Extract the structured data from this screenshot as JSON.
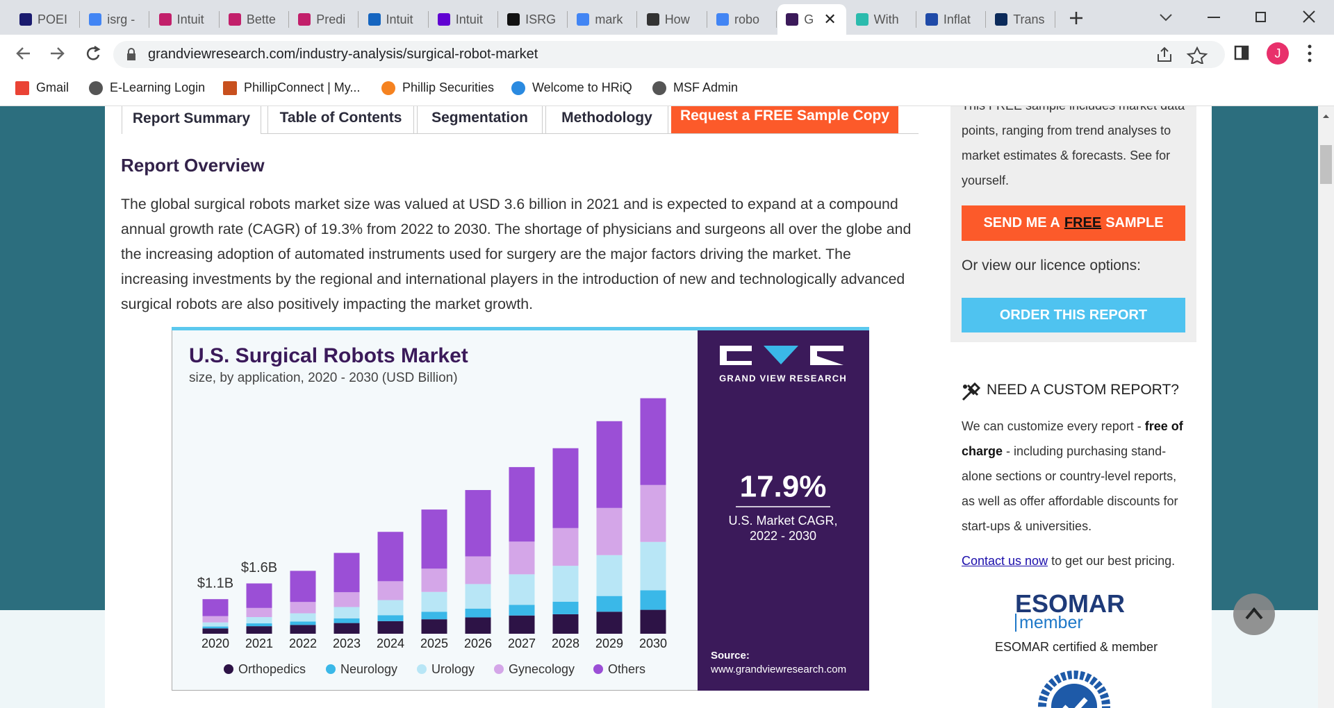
{
  "browser": {
    "tabs": [
      "POEI",
      "isrg -",
      "Intuit",
      "Bette",
      "Predi",
      "Intuit",
      "Intuit",
      "ISRG",
      "mark",
      "How",
      "robo",
      "G",
      "With",
      "Inflat",
      "Trans"
    ],
    "url": "grandviewresearch.com/industry-analysis/surgical-robot-market",
    "profile": "J",
    "bookmarks": [
      "Gmail",
      "E-Learning Login",
      "PhillipConnect | My...",
      "Phillip Securities",
      "Welcome to HRiQ",
      "MSF Admin"
    ]
  },
  "page": {
    "nav_tabs": [
      "Report Summary",
      "Table of Contents",
      "Segmentation",
      "Methodology",
      "Request a FREE Sample Copy"
    ],
    "heading": "Report Overview",
    "paragraph": "The global surgical robots market size was valued at USD 3.6 billion in 2021 and is expected to expand at a compound annual growth rate (CAGR) of 19.3% from 2022 to 2030. The shortage of physicians and surgeons all over the globe and the increasing adoption of automated instruments used for surgery are the major factors driving the market. The increasing investments by the regional and international players in the introduction of new and technologically advanced surgical robots are also positively impacting the market growth."
  },
  "chart_data": {
    "type": "bar",
    "stacked": true,
    "title": "U.S. Surgical Robots Market",
    "subtitle": "size, by application, 2020 - 2030 (USD Billion)",
    "categories": [
      "2020",
      "2021",
      "2022",
      "2023",
      "2024",
      "2025",
      "2026",
      "2027",
      "2028",
      "2029",
      "2030"
    ],
    "series": [
      {
        "name": "Orthopedics",
        "color": "#2d1346",
        "values": [
          0.17,
          0.24,
          0.28,
          0.34,
          0.4,
          0.46,
          0.52,
          0.58,
          0.62,
          0.7,
          0.76
        ]
      },
      {
        "name": "Neurology",
        "color": "#3ab8e8",
        "values": [
          0.06,
          0.09,
          0.11,
          0.15,
          0.19,
          0.24,
          0.28,
          0.34,
          0.4,
          0.5,
          0.62
        ]
      },
      {
        "name": "Urology",
        "color": "#b8e6f6",
        "values": [
          0.13,
          0.2,
          0.26,
          0.36,
          0.48,
          0.63,
          0.78,
          0.97,
          1.14,
          1.3,
          1.54
        ]
      },
      {
        "name": "Gynecology",
        "color": "#d4a6e8",
        "values": [
          0.2,
          0.29,
          0.36,
          0.47,
          0.6,
          0.74,
          0.88,
          1.04,
          1.2,
          1.5,
          1.81
        ]
      },
      {
        "name": "Others",
        "color": "#9b4fd6",
        "values": [
          0.54,
          0.78,
          0.99,
          1.25,
          1.57,
          1.88,
          2.11,
          2.37,
          2.54,
          2.76,
          2.76
        ]
      }
    ],
    "annotations": [
      "$1.1B",
      "$1.6B"
    ],
    "brand": "GRAND VIEW RESEARCH",
    "cagr": "17.9%",
    "cagr_label": [
      "U.S. Market CAGR,",
      "2022 - 2030"
    ],
    "source_label": "Source:",
    "source": "www.grandviewresearch.com"
  },
  "sidebar": {
    "intro": "This FREE sample includes market data points, ranging from trend analyses to market estimates & forecasts. See for yourself.",
    "send_button": [
      "SEND ME A",
      "FREE",
      "SAMPLE"
    ],
    "licence": "Or view our licence options:",
    "order_button": "ORDER THIS REPORT",
    "custom_title": "NEED A CUSTOM REPORT?",
    "custom_text": [
      "We can customize every report - ",
      "free of charge",
      " - including purchasing stand-alone sections or country-level reports, as well as offer affordable discounts for start-ups & universities."
    ],
    "contact": [
      "Contact us now",
      " to get our best pricing."
    ],
    "esomar": [
      "ESOMAR",
      "member",
      "ESOMAR certified & member"
    ]
  }
}
